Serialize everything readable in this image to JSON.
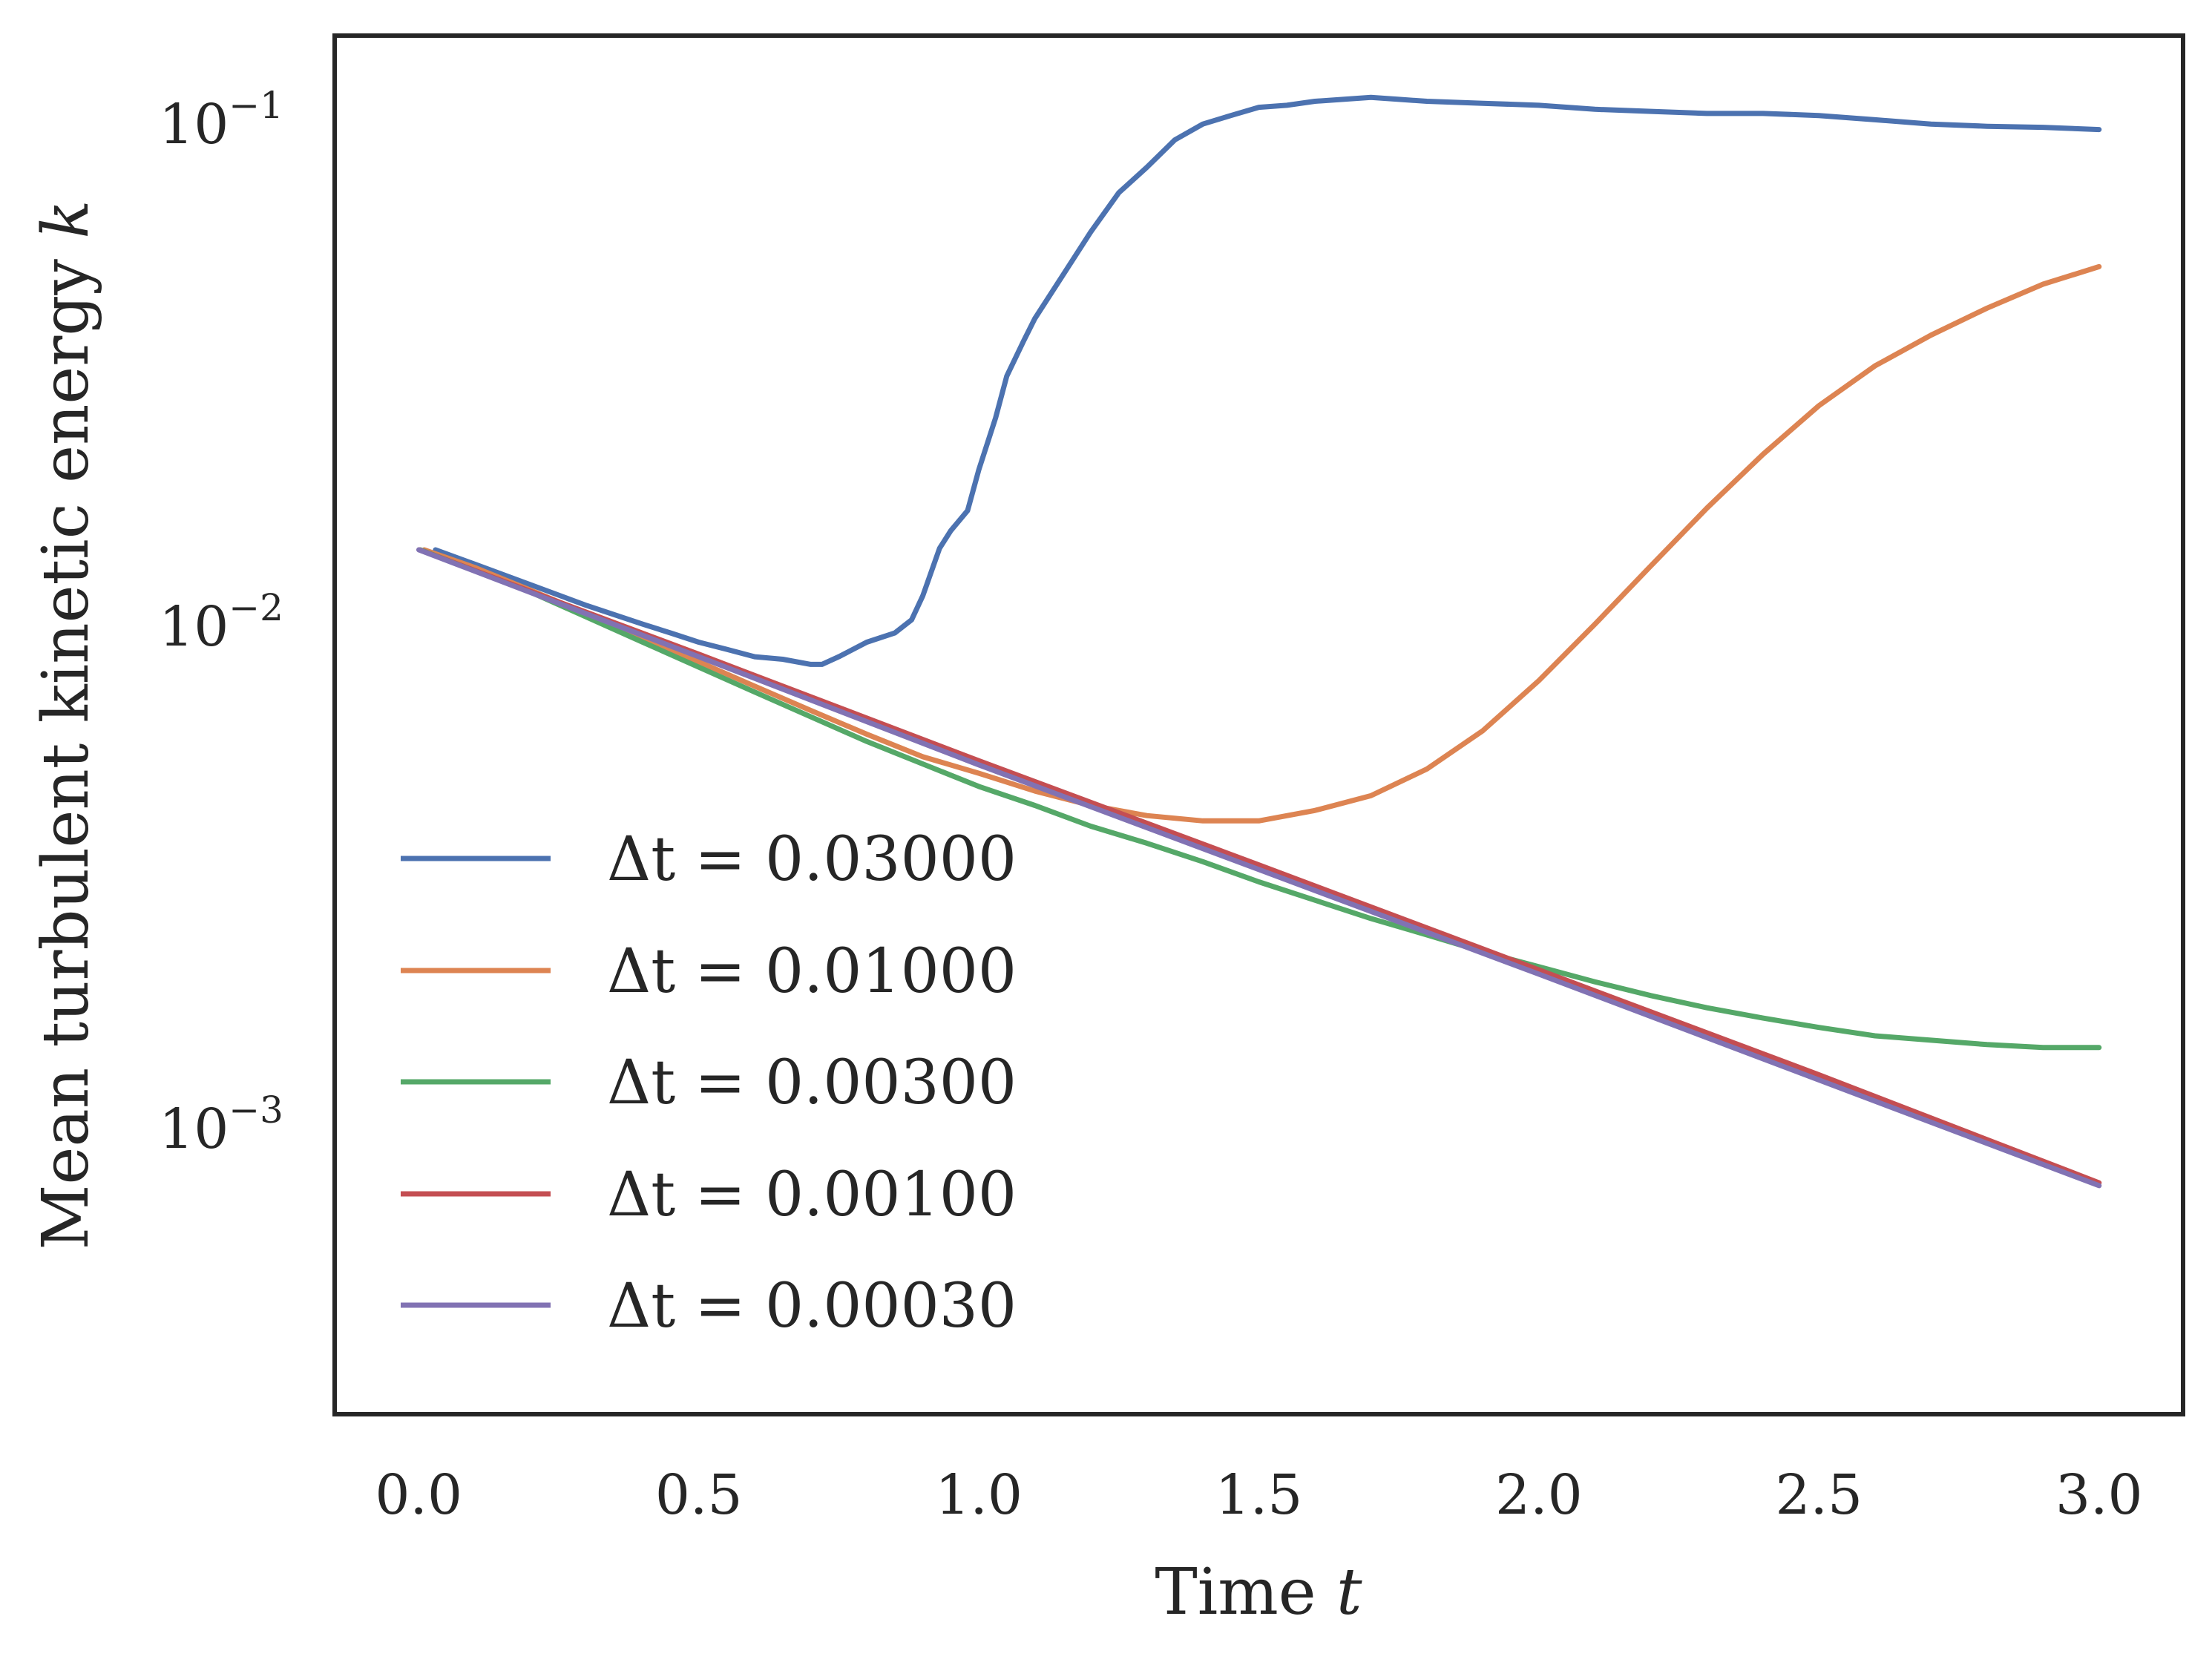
{
  "chart_data": {
    "type": "line",
    "title": "",
    "xlabel": "Time",
    "xlabel_var": "t",
    "ylabel": "Mean turbulent kinetic energy",
    "ylabel_var": "k",
    "xscale": "linear",
    "yscale": "log",
    "xlim": [
      -0.15,
      3.15
    ],
    "ylim": [
      0.00027,
      0.15
    ],
    "grid": false,
    "legend_position": "lower-left",
    "x_ticks": [
      {
        "value": 0.0,
        "label": "0.0"
      },
      {
        "value": 0.5,
        "label": "0.5"
      },
      {
        "value": 1.0,
        "label": "1.0"
      },
      {
        "value": 1.5,
        "label": "1.5"
      },
      {
        "value": 2.0,
        "label": "2.0"
      },
      {
        "value": 2.5,
        "label": "2.5"
      },
      {
        "value": 3.0,
        "label": "3.0"
      }
    ],
    "y_ticks": [
      {
        "value": 0.1,
        "base": "10",
        "exp": "−1"
      },
      {
        "value": 0.01,
        "base": "10",
        "exp": "−2"
      },
      {
        "value": 0.001,
        "base": "10",
        "exp": "−3"
      }
    ],
    "series": [
      {
        "name": "Δt = 0.03000",
        "legend_label": "Δt = 0.03000",
        "color": "#4c72b0",
        "x": [
          0.03,
          0.1,
          0.2,
          0.3,
          0.4,
          0.45,
          0.5,
          0.55,
          0.6,
          0.65,
          0.7,
          0.72,
          0.75,
          0.8,
          0.85,
          0.88,
          0.9,
          0.93,
          0.95,
          0.98,
          1.0,
          1.03,
          1.05,
          1.08,
          1.1,
          1.15,
          1.2,
          1.25,
          1.3,
          1.35,
          1.4,
          1.45,
          1.5,
          1.55,
          1.6,
          1.7,
          1.75,
          1.8,
          1.9,
          2.0,
          2.1,
          2.2,
          2.3,
          2.4,
          2.5,
          2.6,
          2.7,
          2.8,
          2.9,
          3.0
        ],
        "y": [
          0.0142,
          0.0133,
          0.0121,
          0.011,
          0.0101,
          0.0097,
          0.0093,
          0.009,
          0.0087,
          0.0086,
          0.0084,
          0.0084,
          0.0087,
          0.0093,
          0.0097,
          0.0103,
          0.0115,
          0.0143,
          0.0155,
          0.017,
          0.0205,
          0.026,
          0.0315,
          0.037,
          0.041,
          0.05,
          0.061,
          0.073,
          0.082,
          0.093,
          0.1,
          0.104,
          0.108,
          0.109,
          0.111,
          0.113,
          0.112,
          0.111,
          0.11,
          0.109,
          0.107,
          0.106,
          0.105,
          0.105,
          0.104,
          0.102,
          0.1,
          0.099,
          0.0985,
          0.0975
        ]
      },
      {
        "name": "Δt = 0.01000",
        "legend_label": "Δt = 0.01000",
        "color": "#dd8452",
        "x": [
          0.01,
          0.1,
          0.2,
          0.3,
          0.4,
          0.5,
          0.6,
          0.7,
          0.8,
          0.9,
          1.0,
          1.1,
          1.2,
          1.3,
          1.4,
          1.5,
          1.6,
          1.7,
          1.8,
          1.9,
          2.0,
          2.1,
          2.2,
          2.3,
          2.4,
          2.5,
          2.6,
          2.7,
          2.8,
          2.9,
          3.0
        ],
        "y": [
          0.0142,
          0.0131,
          0.0118,
          0.0106,
          0.0095,
          0.0085,
          0.0076,
          0.0068,
          0.0061,
          0.0055,
          0.0051,
          0.0047,
          0.0044,
          0.0042,
          0.0041,
          0.0041,
          0.0043,
          0.0046,
          0.0052,
          0.0062,
          0.0078,
          0.0101,
          0.0132,
          0.0172,
          0.022,
          0.0275,
          0.033,
          0.038,
          0.043,
          0.048,
          0.052
        ]
      },
      {
        "name": "Δt = 0.00300",
        "legend_label": "Δt = 0.00300",
        "color": "#55a868",
        "x": [
          0.003,
          0.2,
          0.4,
          0.6,
          0.8,
          1.0,
          1.1,
          1.2,
          1.3,
          1.4,
          1.5,
          1.6,
          1.7,
          1.8,
          1.9,
          2.0,
          2.1,
          2.2,
          2.3,
          2.4,
          2.5,
          2.6,
          2.7,
          2.8,
          2.9,
          3.0
        ],
        "y": [
          0.0142,
          0.0117,
          0.0093,
          0.0074,
          0.0059,
          0.0048,
          0.0044,
          0.004,
          0.0037,
          0.0034,
          0.0031,
          0.00285,
          0.00262,
          0.00243,
          0.00225,
          0.0021,
          0.00196,
          0.00184,
          0.00174,
          0.00166,
          0.00159,
          0.00153,
          0.0015,
          0.00147,
          0.00145,
          0.00145
        ]
      },
      {
        "name": "Δt = 0.00100",
        "legend_label": "Δt = 0.00100",
        "color": "#c44e52",
        "x": [
          0.001,
          0.5,
          1.0,
          1.5,
          2.0,
          2.5,
          3.0
        ],
        "y": [
          0.0142,
          0.0088,
          0.0054,
          0.00335,
          0.00207,
          0.00128,
          0.00078
        ]
      },
      {
        "name": "Δt = 0.00030",
        "legend_label": "Δt = 0.00030",
        "color": "#8172b3",
        "x": [
          0.0003,
          0.5,
          1.0,
          1.5,
          2.0,
          2.5,
          3.0
        ],
        "y": [
          0.0142,
          0.0087,
          0.0053,
          0.00328,
          0.00203,
          0.00125,
          0.00077
        ]
      }
    ]
  }
}
